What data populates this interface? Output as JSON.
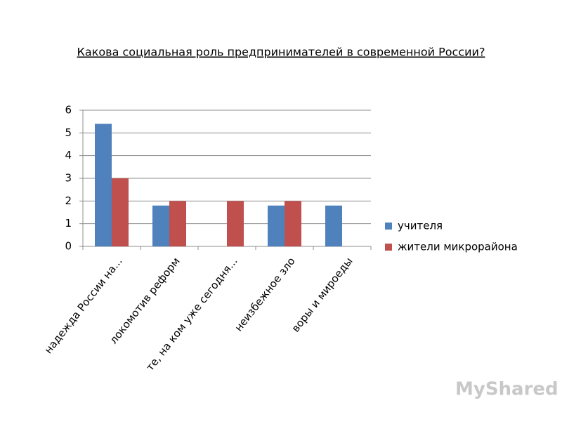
{
  "chart_data": {
    "type": "bar",
    "title": "Какова социальная роль предпринимателей в современной России?",
    "categories": [
      "надежда России на...",
      "локомотив реформ",
      "те, на ком уже сегодня...",
      "неизбежное зло",
      "воры и мироеды"
    ],
    "series": [
      {
        "name": "учителя",
        "color": "#4f81bd",
        "values": [
          5.4,
          1.8,
          0,
          1.8,
          1.8
        ]
      },
      {
        "name": "жители микрорайона",
        "color": "#c0504d",
        "values": [
          3,
          2,
          2,
          2,
          0
        ]
      }
    ],
    "ylim": [
      0,
      6
    ],
    "yticks": [
      0,
      1,
      2,
      3,
      4,
      5,
      6
    ],
    "grid": true,
    "legend": "right",
    "watermark": "MyShared"
  }
}
